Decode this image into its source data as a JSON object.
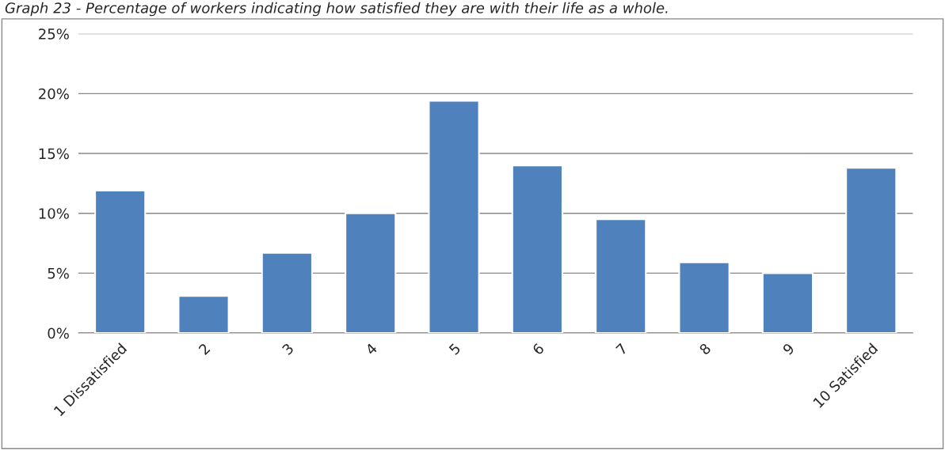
{
  "chart_data": {
    "type": "bar",
    "title": "Graph 23 - Percentage of workers indicating how satisfied they are with their life as a whole.",
    "categories": [
      "1 Dissatisfied",
      "2",
      "3",
      "4",
      "5",
      "6",
      "7",
      "8",
      "9",
      "10 Satisfied"
    ],
    "values": [
      11.9,
      3.1,
      6.7,
      10.0,
      19.4,
      14.0,
      9.5,
      5.9,
      5.0,
      13.8
    ],
    "color": "#4f81bd",
    "ylim": [
      0,
      25
    ],
    "yticks": [
      {
        "value": 0,
        "label": "0%"
      },
      {
        "value": 5,
        "label": "5%"
      },
      {
        "value": 10,
        "label": "10%"
      },
      {
        "value": 15,
        "label": "15%"
      },
      {
        "value": 20,
        "label": "20%"
      },
      {
        "value": 25,
        "label": "25%"
      }
    ],
    "grid": "y",
    "legend": false
  }
}
